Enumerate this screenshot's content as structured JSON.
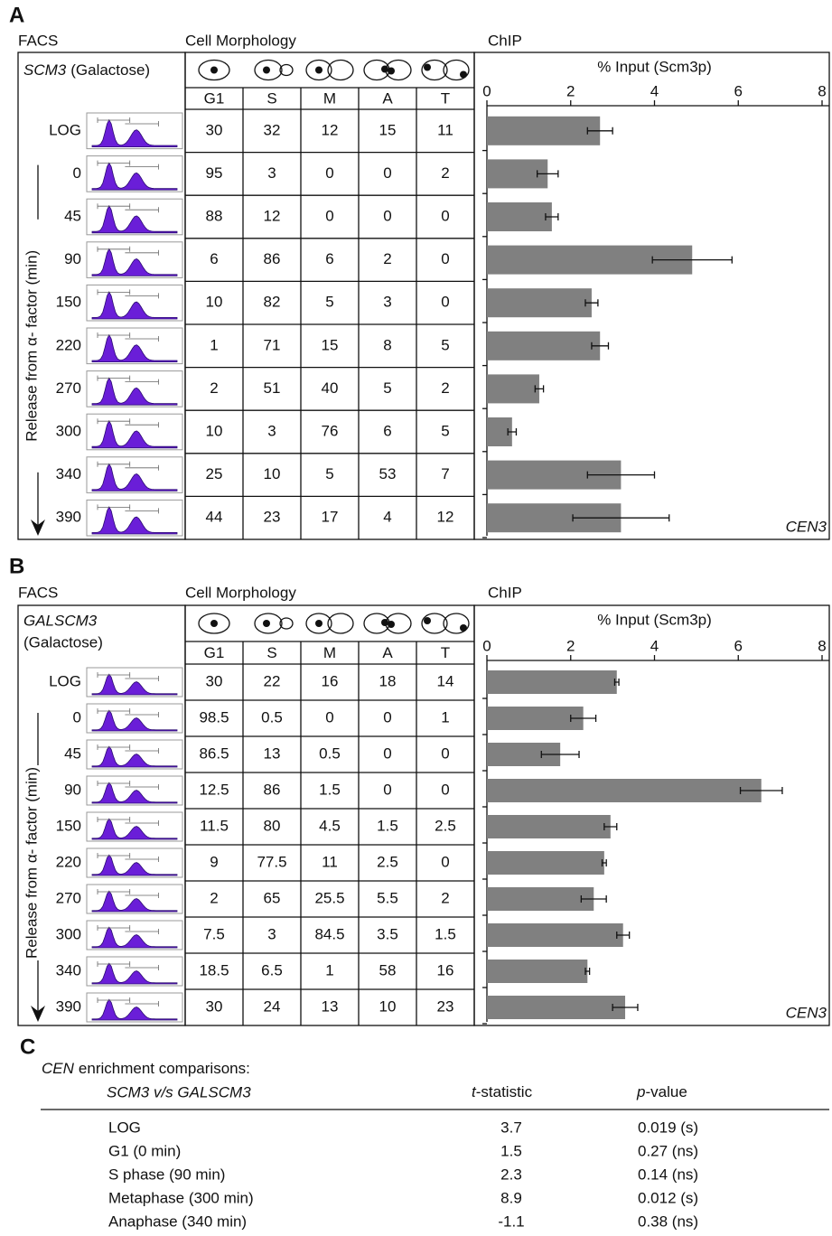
{
  "panels": [
    {
      "letter": "A",
      "facs_label": "FACS",
      "morphology_label": "Cell Morphology",
      "chip_label": "ChIP",
      "strain": "SCM3",
      "condition": "(Galactose)",
      "axis_label": "Release from α- factor (min)",
      "columns": [
        "G1",
        "S",
        "M",
        "A",
        "T"
      ],
      "rows": [
        [
          30,
          32,
          12,
          15,
          11
        ],
        [
          95,
          3,
          0,
          0,
          2
        ],
        [
          88,
          12,
          0,
          0,
          0
        ],
        [
          6,
          86,
          6,
          2,
          0
        ],
        [
          10,
          82,
          5,
          3,
          0
        ],
        [
          1,
          71,
          15,
          8,
          5
        ],
        [
          2,
          51,
          40,
          5,
          2
        ],
        [
          10,
          3,
          76,
          6,
          5
        ],
        [
          25,
          10,
          5,
          53,
          7
        ],
        [
          44,
          23,
          17,
          4,
          12
        ]
      ]
    },
    {
      "letter": "B",
      "facs_label": "FACS",
      "morphology_label": "Cell Morphology",
      "chip_label": "ChIP",
      "strain": "GALSCM3",
      "condition": "(Galactose)",
      "axis_label": "Release from α- factor (min)",
      "columns": [
        "G1",
        "S",
        "M",
        "A",
        "T"
      ],
      "rows": [
        [
          30,
          22,
          16,
          18,
          14
        ],
        [
          98.5,
          0.5,
          0,
          0,
          1
        ],
        [
          86.5,
          13,
          0.5,
          0,
          0
        ],
        [
          12.5,
          86,
          1.5,
          0,
          0
        ],
        [
          11.5,
          80,
          4.5,
          1.5,
          2.5
        ],
        [
          9,
          77.5,
          11,
          2.5,
          0
        ],
        [
          2,
          65,
          25.5,
          5.5,
          2
        ],
        [
          7.5,
          3,
          84.5,
          3.5,
          1.5
        ],
        [
          18.5,
          6.5,
          1,
          58,
          16
        ],
        [
          30,
          24,
          13,
          10,
          23
        ]
      ]
    }
  ],
  "chart_data": [
    {
      "type": "bar",
      "title": "% Input (Scm3p)",
      "annotation": "CEN3",
      "color": "#808080",
      "categories": [
        "LOG",
        "0",
        "45",
        "90",
        "150",
        "220",
        "270",
        "300",
        "340",
        "390"
      ],
      "values": [
        2.7,
        1.45,
        1.55,
        4.9,
        2.5,
        2.7,
        1.25,
        0.6,
        3.2,
        3.2
      ],
      "errors": [
        0.3,
        0.25,
        0.15,
        0.95,
        0.15,
        0.2,
        0.1,
        0.1,
        0.8,
        1.15
      ],
      "xlim": [
        0,
        8
      ],
      "xticks": [
        0,
        2,
        4,
        6,
        8
      ]
    },
    {
      "type": "bar",
      "title": "% Input (Scm3p)",
      "annotation": "CEN3",
      "color": "#808080",
      "categories": [
        "LOG",
        "0",
        "45",
        "90",
        "150",
        "220",
        "270",
        "300",
        "340",
        "390"
      ],
      "values": [
        3.1,
        2.3,
        1.75,
        6.55,
        2.95,
        2.8,
        2.55,
        3.25,
        2.4,
        3.3
      ],
      "errors": [
        0.05,
        0.3,
        0.45,
        0.5,
        0.15,
        0.05,
        0.3,
        0.15,
        0.05,
        0.3
      ],
      "xlim": [
        0,
        8
      ],
      "xticks": [
        0,
        2,
        4,
        6,
        8
      ]
    }
  ],
  "comparisons": {
    "letter": "C",
    "title": {
      "italic": "CEN",
      "rest": "enrichment comparisons:"
    },
    "columns": {
      "label": "SCM3 v/s GALSCM3",
      "t": {
        "italic": "t",
        "rest": "-statistic"
      },
      "p": {
        "italic": "p",
        "rest": "-value"
      }
    },
    "rows": [
      [
        "LOG",
        3.7,
        "0.019 (s)"
      ],
      [
        "G1 (0 min)",
        1.5,
        "0.27 (ns)"
      ],
      [
        "S phase (90 min)",
        2.3,
        "0.14 (ns)"
      ],
      [
        "Metaphase (300 min)",
        8.9,
        "0.012 (s)"
      ],
      [
        "Anaphase (340 min)",
        -1.1,
        "0.38 (ns)"
      ]
    ]
  }
}
